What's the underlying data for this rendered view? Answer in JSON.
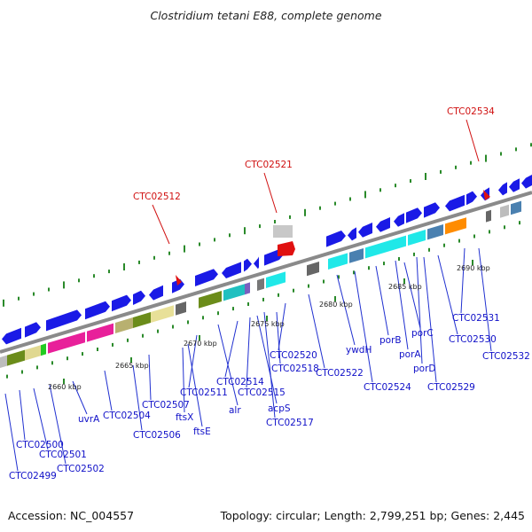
{
  "title": "Clostridium tetani E88, complete genome",
  "footer": {
    "accession": "Accession: NC_004557",
    "summary": "Topology: circular; Length: 2,799,251 bp; Genes: 2,445"
  },
  "colors": {
    "backbone": "#8a8a8a",
    "gene_arrow": "#1a1ae6",
    "gene_label": "#1010c8",
    "highlight": "#d01010",
    "tick": "#2a8a2a"
  },
  "kbp_ticks": [
    "2660 kbp",
    "2665 kbp",
    "2670 kbp",
    "2675 kbp",
    "2680 kbp",
    "2685 kbp",
    "2690 kbp"
  ],
  "highlights": [
    "CTC02512",
    "CTC02521",
    "CTC02534"
  ],
  "gene_labels": [
    "CTC02499",
    "CTC02500",
    "CTC02501",
    "CTC02502",
    "uvrA",
    "CTC02504",
    "CTC02506",
    "CTC02507",
    "ftsX",
    "ftsE",
    "CTC02511",
    "alr",
    "CTC02514",
    "CTC02515",
    "acpS",
    "CTC02517",
    "CTC02518",
    "CTC02520",
    "CTC02522",
    "ywdH",
    "CTC02524",
    "porB",
    "porA",
    "porC",
    "porD",
    "CTC02529",
    "CTC02530",
    "CTC02531",
    "CTC02532"
  ]
}
